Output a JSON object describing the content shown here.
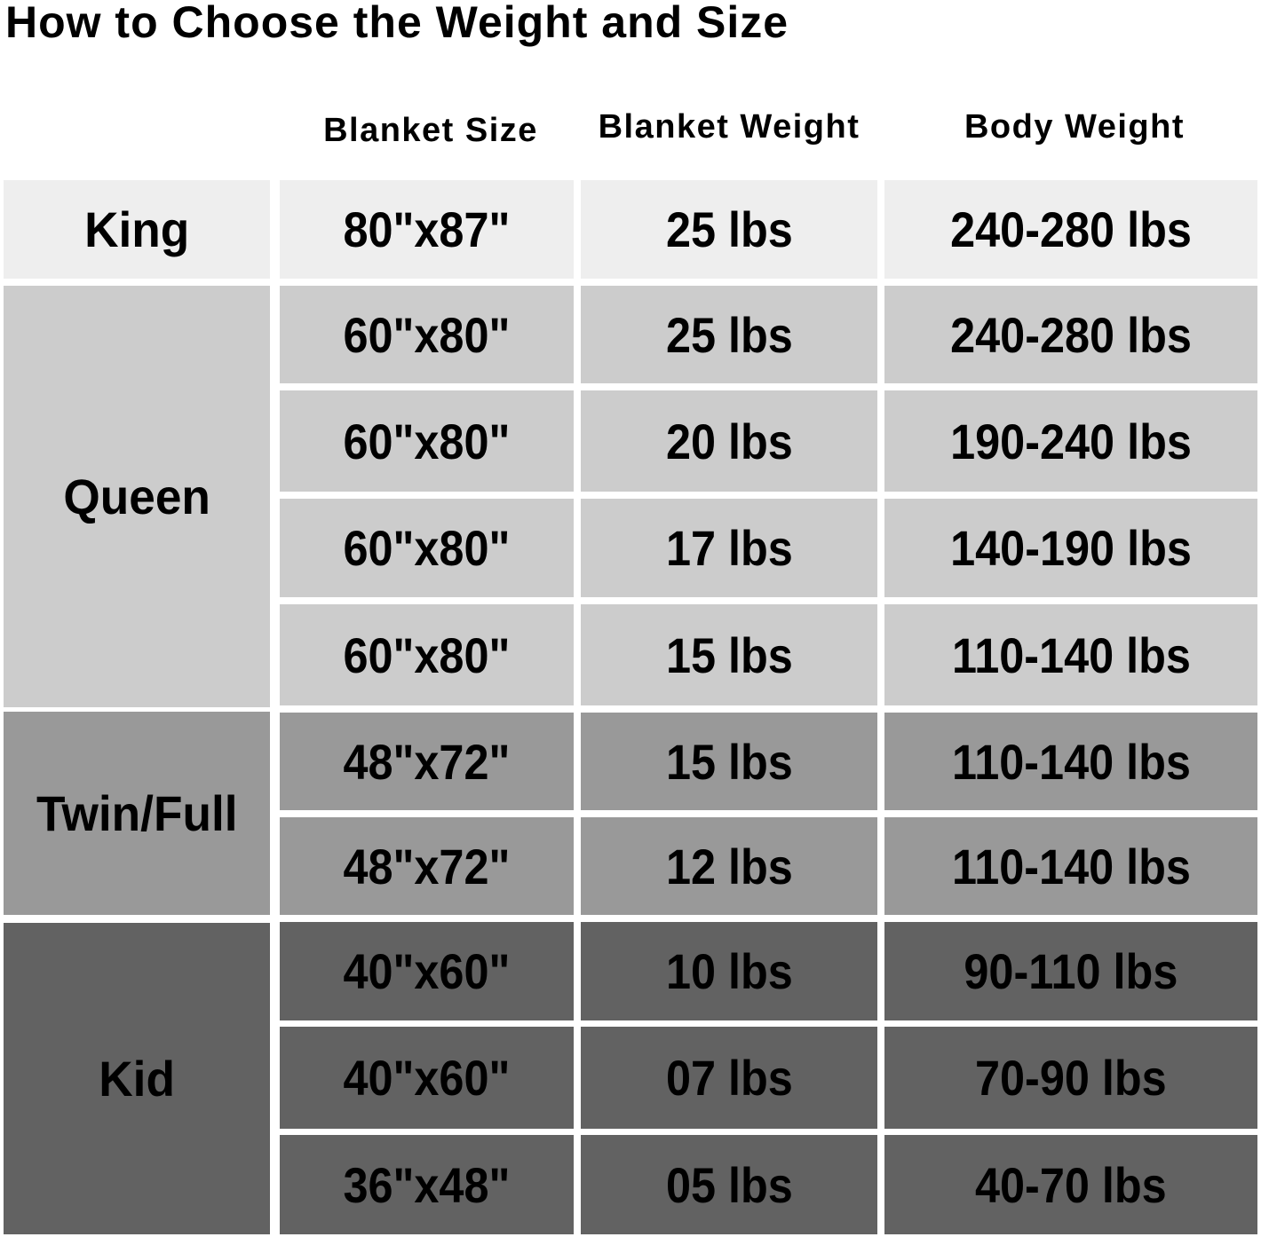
{
  "title": "How to Choose the Weight and Size",
  "headers": {
    "blanket_size": "Blanket Size",
    "blanket_weight": "Blanket Weight",
    "body_weight": "Body Weight"
  },
  "colors": {
    "King": "#eeeeee",
    "Queen": "#cccccc",
    "Twin/Full": "#999999",
    "Kid": "#626262"
  },
  "groups": [
    {
      "name": "King",
      "rows": [
        {
          "size": "80\"x87\"",
          "blanket_weight": "25 lbs",
          "body_weight": "240-280 lbs"
        }
      ]
    },
    {
      "name": "Queen",
      "rows": [
        {
          "size": "60\"x80\"",
          "blanket_weight": "25 lbs",
          "body_weight": "240-280 lbs"
        },
        {
          "size": "60\"x80\"",
          "blanket_weight": "20 lbs",
          "body_weight": "190-240 lbs"
        },
        {
          "size": "60\"x80\"",
          "blanket_weight": "17 lbs",
          "body_weight": "140-190 lbs"
        },
        {
          "size": "60\"x80\"",
          "blanket_weight": "15 lbs",
          "body_weight": "110-140 lbs"
        }
      ]
    },
    {
      "name": "Twin/Full",
      "rows": [
        {
          "size": "48\"x72\"",
          "blanket_weight": "15 lbs",
          "body_weight": "110-140 lbs"
        },
        {
          "size": "48\"x72\"",
          "blanket_weight": "12 lbs",
          "body_weight": "110-140 lbs"
        }
      ]
    },
    {
      "name": "Kid",
      "rows": [
        {
          "size": "40\"x60\"",
          "blanket_weight": "10 lbs",
          "body_weight": "90-110 lbs"
        },
        {
          "size": "40\"x60\"",
          "blanket_weight": "07 lbs",
          "body_weight": "70-90 lbs"
        },
        {
          "size": "36\"x48\"",
          "blanket_weight": "05 lbs",
          "body_weight": "40-70 lbs"
        }
      ]
    }
  ]
}
